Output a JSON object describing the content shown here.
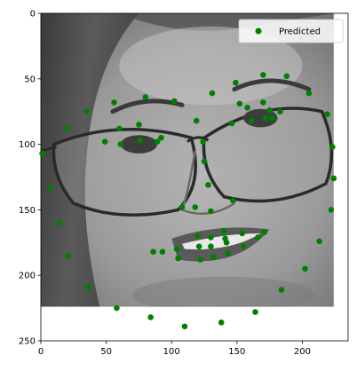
{
  "chart_data": {
    "type": "scatter",
    "title": "",
    "xlabel": "",
    "ylabel": "",
    "xlim": [
      0,
      235
    ],
    "ylim": [
      250,
      0
    ],
    "xticks": [
      0,
      50,
      100,
      150,
      200
    ],
    "yticks": [
      0,
      50,
      100,
      150,
      200,
      250
    ],
    "grid": false,
    "legend_position": "top-right",
    "background": "grayscale face photograph filling x 0–224, y 0–224",
    "point_color": "#008000",
    "series": [
      {
        "name": "Predicted",
        "points": [
          [
            1,
            107
          ],
          [
            7,
            133
          ],
          [
            14,
            160
          ],
          [
            20,
            88
          ],
          [
            21,
            185
          ],
          [
            35,
            75
          ],
          [
            36,
            209
          ],
          [
            49,
            98
          ],
          [
            56,
            68
          ],
          [
            58,
            225
          ],
          [
            60,
            88
          ],
          [
            61,
            100
          ],
          [
            75,
            85
          ],
          [
            76,
            97
          ],
          [
            80,
            64
          ],
          [
            84,
            232
          ],
          [
            86,
            182
          ],
          [
            89,
            98
          ],
          [
            92,
            95
          ],
          [
            93,
            182
          ],
          [
            102,
            67
          ],
          [
            104,
            180
          ],
          [
            105,
            187
          ],
          [
            108,
            148
          ],
          [
            110,
            239
          ],
          [
            118,
            148
          ],
          [
            119,
            82
          ],
          [
            120,
            170
          ],
          [
            121,
            178
          ],
          [
            122,
            188
          ],
          [
            124,
            98
          ],
          [
            125,
            113
          ],
          [
            128,
            131
          ],
          [
            130,
            151
          ],
          [
            130,
            178
          ],
          [
            130,
            171
          ],
          [
            131,
            61
          ],
          [
            132,
            186
          ],
          [
            138,
            236
          ],
          [
            140,
            166
          ],
          [
            141,
            172
          ],
          [
            142,
            175
          ],
          [
            143,
            183
          ],
          [
            146,
            84
          ],
          [
            147,
            143
          ],
          [
            149,
            53
          ],
          [
            152,
            69
          ],
          [
            154,
            168
          ],
          [
            155,
            178
          ],
          [
            158,
            72
          ],
          [
            161,
            82
          ],
          [
            164,
            228
          ],
          [
            166,
            171
          ],
          [
            170,
            47
          ],
          [
            170,
            68
          ],
          [
            171,
            167
          ],
          [
            172,
            80
          ],
          [
            175,
            74
          ],
          [
            177,
            80
          ],
          [
            183,
            75
          ],
          [
            184,
            211
          ],
          [
            188,
            48
          ],
          [
            202,
            195
          ],
          [
            205,
            61
          ],
          [
            213,
            174
          ],
          [
            219,
            77
          ],
          [
            222,
            150
          ],
          [
            223,
            102
          ],
          [
            224,
            126
          ]
        ]
      }
    ]
  }
}
